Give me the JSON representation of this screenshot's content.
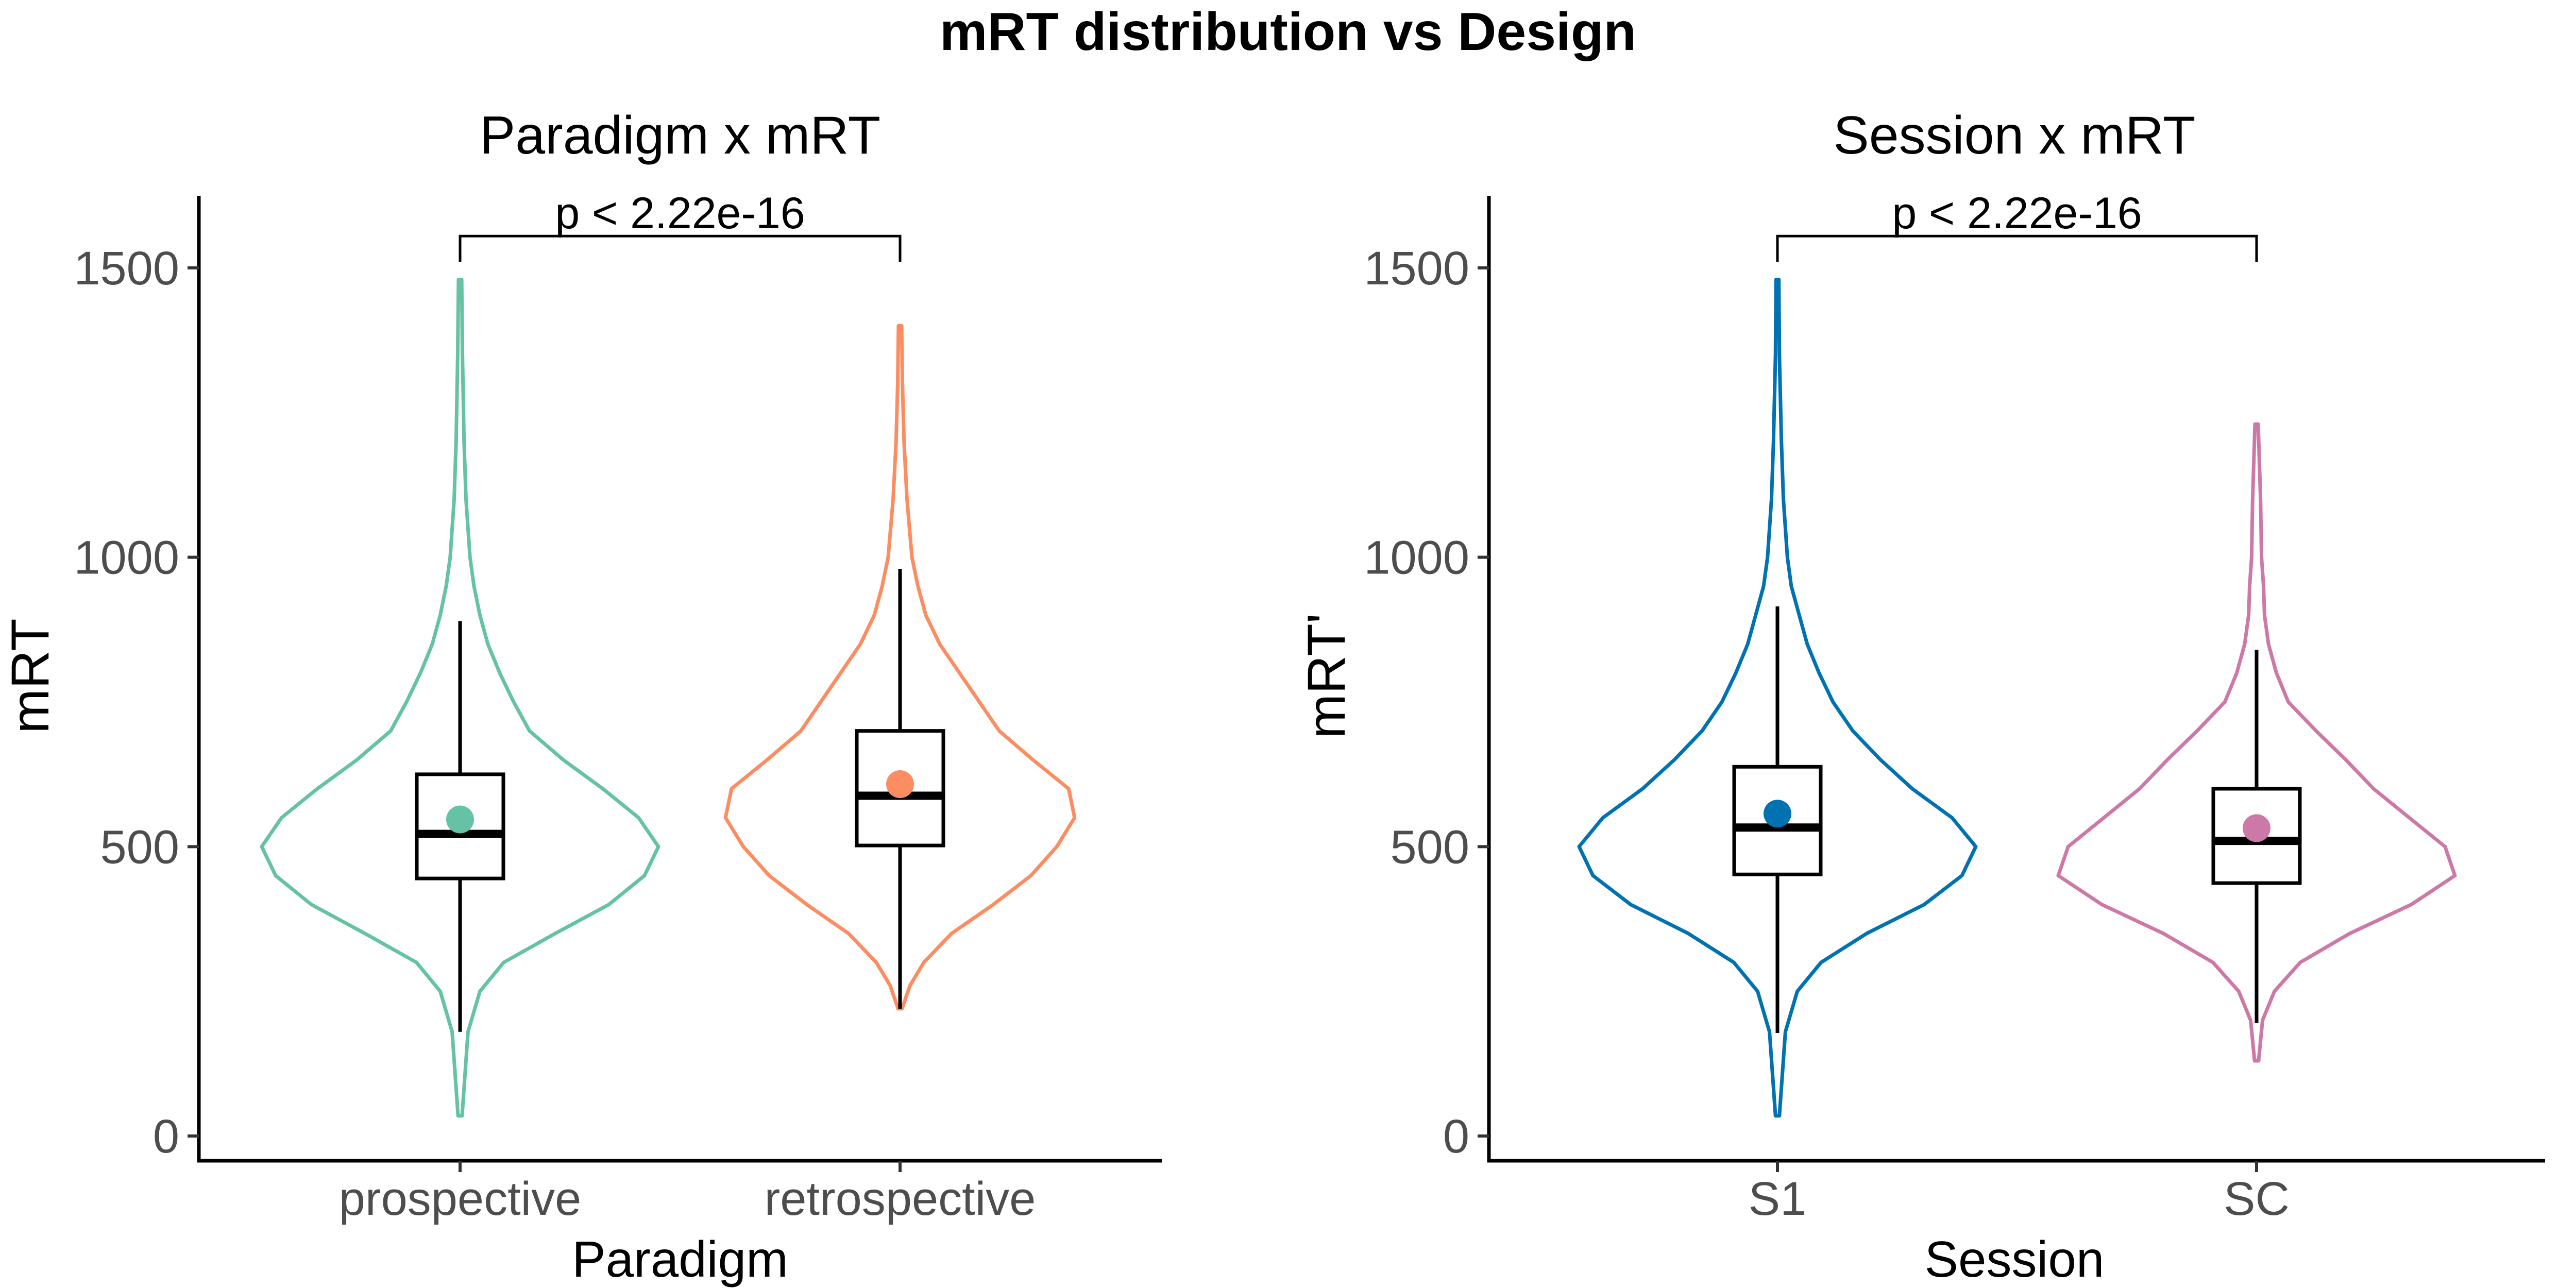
{
  "title": "mRT distribution vs Design",
  "chart_data": [
    {
      "type": "violin",
      "title": "Paradigm x mRT",
      "xlabel": "Paradigm",
      "ylabel": "mRT",
      "ylim": [
        -5,
        1575
      ],
      "yticks": [
        0,
        500,
        1000,
        1500
      ],
      "grid": false,
      "legend": "none",
      "categories": [
        "prospective",
        "retrospective"
      ],
      "comparison": {
        "label": "p < 2.22e-16",
        "between": [
          0,
          1
        ],
        "y": 1555
      },
      "groups": [
        {
          "category": "prospective",
          "color": "#66C2A5",
          "box": {
            "lower_whisker": 180,
            "q1": 445,
            "median": 522,
            "q3": 625,
            "upper_whisker": 890
          },
          "mean": 547,
          "violin": [
            [
              35,
              0.01
            ],
            [
              180,
              0.04
            ],
            [
              250,
              0.1
            ],
            [
              300,
              0.22
            ],
            [
              350,
              0.48
            ],
            [
              400,
              0.75
            ],
            [
              450,
              0.93
            ],
            [
              500,
              1.0
            ],
            [
              550,
              0.9
            ],
            [
              600,
              0.72
            ],
            [
              650,
              0.52
            ],
            [
              700,
              0.35
            ],
            [
              750,
              0.27
            ],
            [
              800,
              0.2
            ],
            [
              850,
              0.14
            ],
            [
              900,
              0.1
            ],
            [
              950,
              0.07
            ],
            [
              1000,
              0.05
            ],
            [
              1100,
              0.03
            ],
            [
              1200,
              0.02
            ],
            [
              1350,
              0.012
            ],
            [
              1480,
              0.008
            ]
          ]
        },
        {
          "category": "retrospective",
          "color": "#FC8D62",
          "box": {
            "lower_whisker": 220,
            "q1": 502,
            "median": 588,
            "q3": 700,
            "upper_whisker": 980
          },
          "mean": 608,
          "violin": [
            [
              220,
              0.01
            ],
            [
              260,
              0.05
            ],
            [
              300,
              0.12
            ],
            [
              350,
              0.26
            ],
            [
              400,
              0.47
            ],
            [
              450,
              0.66
            ],
            [
              500,
              0.79
            ],
            [
              550,
              0.88
            ],
            [
              600,
              0.85
            ],
            [
              650,
              0.67
            ],
            [
              700,
              0.5
            ],
            [
              750,
              0.4
            ],
            [
              800,
              0.3
            ],
            [
              850,
              0.2
            ],
            [
              900,
              0.13
            ],
            [
              950,
              0.09
            ],
            [
              1000,
              0.06
            ],
            [
              1100,
              0.035
            ],
            [
              1200,
              0.02
            ],
            [
              1300,
              0.012
            ],
            [
              1400,
              0.008
            ]
          ]
        }
      ]
    },
    {
      "type": "violin",
      "title": "Session x mRT",
      "xlabel": "Session",
      "ylabel": "mRT'",
      "ylim": [
        -5,
        1575
      ],
      "yticks": [
        0,
        500,
        1000,
        1500
      ],
      "grid": false,
      "legend": "none",
      "categories": [
        "S1",
        "SC"
      ],
      "comparison": {
        "label": "p < 2.22e-16",
        "between": [
          0,
          1
        ],
        "y": 1555
      },
      "groups": [
        {
          "category": "S1",
          "color": "#0072B2",
          "box": {
            "lower_whisker": 178,
            "q1": 452,
            "median": 533,
            "q3": 638,
            "upper_whisker": 915
          },
          "mean": 557,
          "violin": [
            [
              35,
              0.01
            ],
            [
              180,
              0.04
            ],
            [
              250,
              0.1
            ],
            [
              300,
              0.22
            ],
            [
              350,
              0.45
            ],
            [
              400,
              0.74
            ],
            [
              450,
              0.93
            ],
            [
              500,
              1.0
            ],
            [
              550,
              0.88
            ],
            [
              600,
              0.68
            ],
            [
              650,
              0.52
            ],
            [
              700,
              0.38
            ],
            [
              750,
              0.28
            ],
            [
              800,
              0.21
            ],
            [
              850,
              0.15
            ],
            [
              900,
              0.11
            ],
            [
              950,
              0.07
            ],
            [
              1000,
              0.05
            ],
            [
              1100,
              0.03
            ],
            [
              1200,
              0.02
            ],
            [
              1350,
              0.01
            ],
            [
              1480,
              0.007
            ]
          ]
        },
        {
          "category": "SC",
          "color": "#CC79A7",
          "box": {
            "lower_whisker": 195,
            "q1": 437,
            "median": 510,
            "q3": 600,
            "upper_whisker": 840
          },
          "mean": 532,
          "violin": [
            [
              130,
              0.01
            ],
            [
              200,
              0.03
            ],
            [
              250,
              0.09
            ],
            [
              300,
              0.22
            ],
            [
              350,
              0.47
            ],
            [
              400,
              0.78
            ],
            [
              450,
              1.0
            ],
            [
              500,
              0.95
            ],
            [
              550,
              0.77
            ],
            [
              600,
              0.59
            ],
            [
              650,
              0.45
            ],
            [
              700,
              0.3
            ],
            [
              750,
              0.16
            ],
            [
              800,
              0.1
            ],
            [
              850,
              0.06
            ],
            [
              900,
              0.04
            ],
            [
              950,
              0.035
            ],
            [
              1000,
              0.025
            ],
            [
              1100,
              0.02
            ],
            [
              1230,
              0.008
            ]
          ]
        }
      ]
    }
  ]
}
